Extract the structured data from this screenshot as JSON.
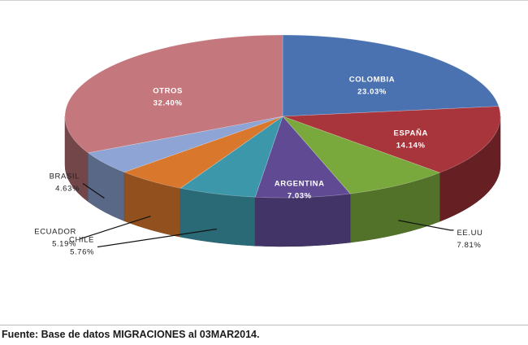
{
  "chart_data": {
    "type": "pie",
    "title": "",
    "categories": [
      "COLOMBIA",
      "ESPAÑA",
      "EE.UU",
      "ARGENTINA",
      "CHILE",
      "ECUADOR",
      "BRASIL",
      "OTROS"
    ],
    "values": [
      23.03,
      14.14,
      7.81,
      7.03,
      5.76,
      5.19,
      4.63,
      32.4
    ],
    "value_labels": [
      "23.03%",
      "14.14%",
      "7.81%",
      "7.03%",
      "5.76%",
      "5.19%",
      "4.63%",
      "32.40%"
    ],
    "colors": [
      "#4a72b0",
      "#a8353b",
      "#79a83c",
      "#5f4a93",
      "#3c97ab",
      "#d9772c",
      "#8ea4d4",
      "#c4777d"
    ],
    "style": "3d-pie",
    "legend": "none",
    "label_positions": [
      "inside",
      "inside",
      "outside",
      "inside",
      "outside",
      "outside",
      "outside",
      "inside"
    ]
  },
  "footer": {
    "source": "Fuente: Base de datos MIGRACIONES al 03MAR2014."
  }
}
